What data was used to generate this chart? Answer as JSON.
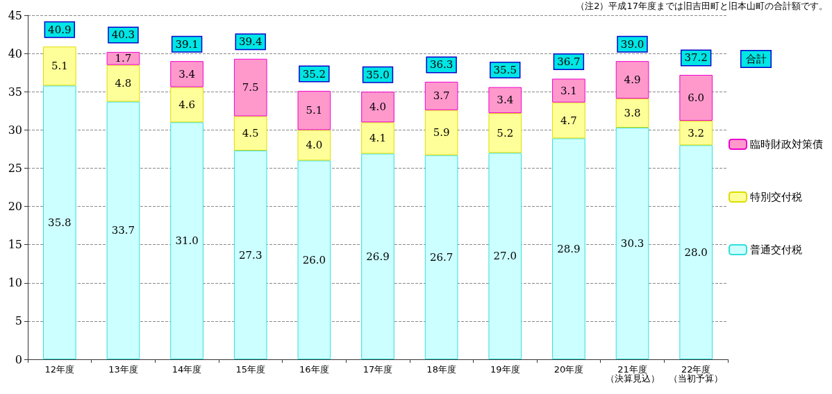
{
  "chart_data": {
    "type": "bar",
    "stacked": true,
    "categories": [
      "12年度",
      "13年度",
      "14年度",
      "15年度",
      "16年度",
      "17年度",
      "18年度",
      "19年度",
      "20年度",
      "21年度（決算見込）",
      "22年度（当初予算）"
    ],
    "series": [
      {
        "name": "普通交付税",
        "color": "#ccffff",
        "values": [
          35.8,
          33.7,
          31.0,
          27.3,
          26.0,
          26.9,
          26.7,
          27.0,
          28.9,
          30.3,
          28.0
        ],
        "value_labels": [
          "35.8",
          "33.7",
          "31.0",
          "27.3",
          "26.0",
          "26.9",
          "26.7",
          "27.0",
          "28.9",
          "30.3",
          "28.0"
        ]
      },
      {
        "name": "特別交付税",
        "color": "#ffff99",
        "values": [
          5.1,
          4.8,
          4.6,
          4.5,
          4.0,
          4.1,
          5.9,
          5.2,
          4.7,
          3.8,
          3.2
        ],
        "value_labels": [
          "5.1",
          "4.8",
          "4.6",
          "4.5",
          "4.0",
          "4.1",
          "5.9",
          "5.2",
          "4.7",
          "3.8",
          "3.2"
        ]
      },
      {
        "name": "臨時財政対策債",
        "color": "#ff99cc",
        "values": [
          null,
          1.7,
          3.4,
          7.5,
          5.1,
          4.0,
          3.7,
          3.4,
          3.1,
          4.9,
          6.0
        ],
        "value_labels": [
          null,
          "1.7",
          "3.4",
          "7.5",
          "5.1",
          "4.0",
          "3.7",
          "3.4",
          "3.1",
          "4.9",
          "6.0"
        ]
      }
    ],
    "totals": [
      "40.9",
      "40.3",
      "39.1",
      "39.4",
      "35.2",
      "35.0",
      "36.3",
      "35.5",
      "36.7",
      "39.0",
      "37.2"
    ],
    "ylim": [
      0,
      45
    ],
    "yticks": [
      0,
      5,
      10,
      15,
      20,
      25,
      30,
      35,
      40,
      45
    ],
    "grid": "y",
    "legend": "right",
    "annotations": [
      "（注2）平成17年度までは旧吉田町と旧本山町の合計額です。",
      "合計"
    ]
  }
}
